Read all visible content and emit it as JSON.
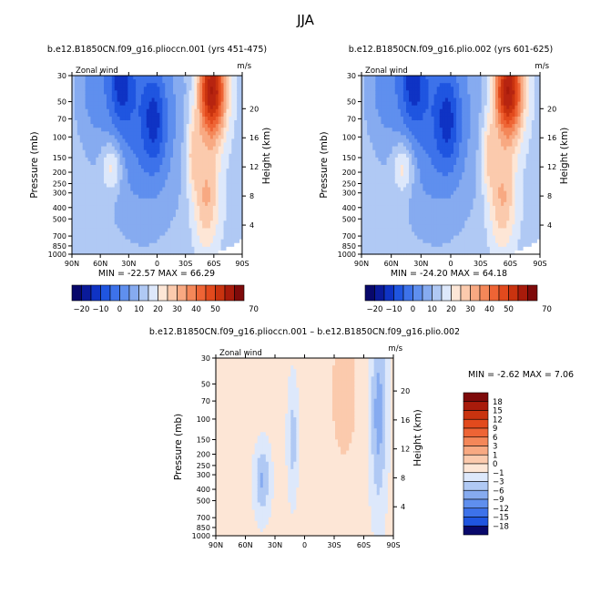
{
  "page_title": "JJA",
  "colors": {
    "negative": [
      "#08086b",
      "#0a1a9a",
      "#0f33c4",
      "#1f55e0",
      "#3d72ea",
      "#5f8fee",
      "#86abf0",
      "#b0c9f4",
      "#dde8fb"
    ],
    "positive": [
      "#fde6d6",
      "#fbcaad",
      "#f8a982",
      "#f48759",
      "#ee6435",
      "#e24a1d",
      "#c9330f",
      "#a81b0b",
      "#7e0a0a"
    ]
  },
  "chart_data": [
    {
      "id": "top-left",
      "type": "heatmap",
      "title": "b.e12.B1850CN.f09_g16.plioccn.001 (yrs 451-475)",
      "left_label": "Zonal wind",
      "right_label": "m/s",
      "ylabel": "Pressure (mb)",
      "ylabel_right": "Height (km)",
      "x_ticks": [
        "90N",
        "60N",
        "30N",
        "0",
        "30S",
        "60S",
        "90S"
      ],
      "x_range": [
        90,
        -90
      ],
      "y_ticks": [
        30,
        50,
        70,
        100,
        150,
        200,
        250,
        300,
        400,
        500,
        700,
        850,
        1000
      ],
      "y_range": [
        30,
        1000
      ],
      "height_ticks": [
        4,
        8,
        12,
        16,
        20
      ],
      "min_max_text": "MIN = -22.57   MAX = 66.29",
      "levels": [
        -20,
        -15,
        -10,
        -5,
        0,
        5,
        10,
        15,
        20,
        25,
        30,
        35,
        40,
        45,
        50,
        55,
        60,
        65,
        70
      ],
      "label_bar_ticks": [
        "-20",
        "-10",
        "0",
        "10",
        "20",
        "30",
        "40",
        "50",
        "70"
      ]
    },
    {
      "id": "top-right",
      "type": "heatmap",
      "title": "b.e12.B1850CN.f09_g16.plio.002 (yrs 601-625)",
      "left_label": "Zonal wind",
      "right_label": "m/s",
      "ylabel": "Pressure (mb)",
      "ylabel_right": "Height (km)",
      "x_ticks": [
        "90N",
        "60N",
        "30N",
        "0",
        "30S",
        "60S",
        "90S"
      ],
      "x_range": [
        90,
        -90
      ],
      "y_ticks": [
        30,
        50,
        70,
        100,
        150,
        200,
        250,
        300,
        400,
        500,
        700,
        850,
        1000
      ],
      "y_range": [
        30,
        1000
      ],
      "height_ticks": [
        4,
        8,
        12,
        16,
        20
      ],
      "min_max_text": "MIN = -24.20   MAX = 64.18",
      "levels": [
        -20,
        -15,
        -10,
        -5,
        0,
        5,
        10,
        15,
        20,
        25,
        30,
        35,
        40,
        45,
        50,
        55,
        60,
        65,
        70
      ],
      "label_bar_ticks": [
        "-20",
        "-10",
        "0",
        "10",
        "20",
        "30",
        "40",
        "50",
        "70"
      ]
    },
    {
      "id": "bottom-diff",
      "type": "heatmap",
      "title": "b.e12.B1850CN.f09_g16.plioccn.001 – b.e12.B1850CN.f09_g16.plio.002",
      "left_label": "Zonal wind",
      "right_label": "m/s",
      "ylabel": "Pressure (mb)",
      "ylabel_right": "Height (km)",
      "x_ticks": [
        "90N",
        "60N",
        "30N",
        "0",
        "30S",
        "60S",
        "90S"
      ],
      "x_range": [
        90,
        -90
      ],
      "y_ticks": [
        30,
        50,
        70,
        100,
        150,
        200,
        250,
        300,
        400,
        500,
        700,
        850,
        1000
      ],
      "y_range": [
        30,
        1000
      ],
      "height_ticks": [
        4,
        8,
        12,
        16,
        20
      ],
      "min_max_text": "MIN =   -2.62   MAX =    7.06",
      "levels": [
        -18,
        -15,
        -12,
        -9,
        -6,
        -3,
        -1,
        0,
        1,
        3,
        6,
        9,
        12,
        15,
        18
      ],
      "label_bar_ticks": [
        "18",
        "15",
        "12",
        "9",
        "6",
        "3",
        "1",
        "0",
        "−1",
        "−3",
        "−6",
        "−9",
        "−12",
        "−15",
        "−18"
      ]
    }
  ]
}
